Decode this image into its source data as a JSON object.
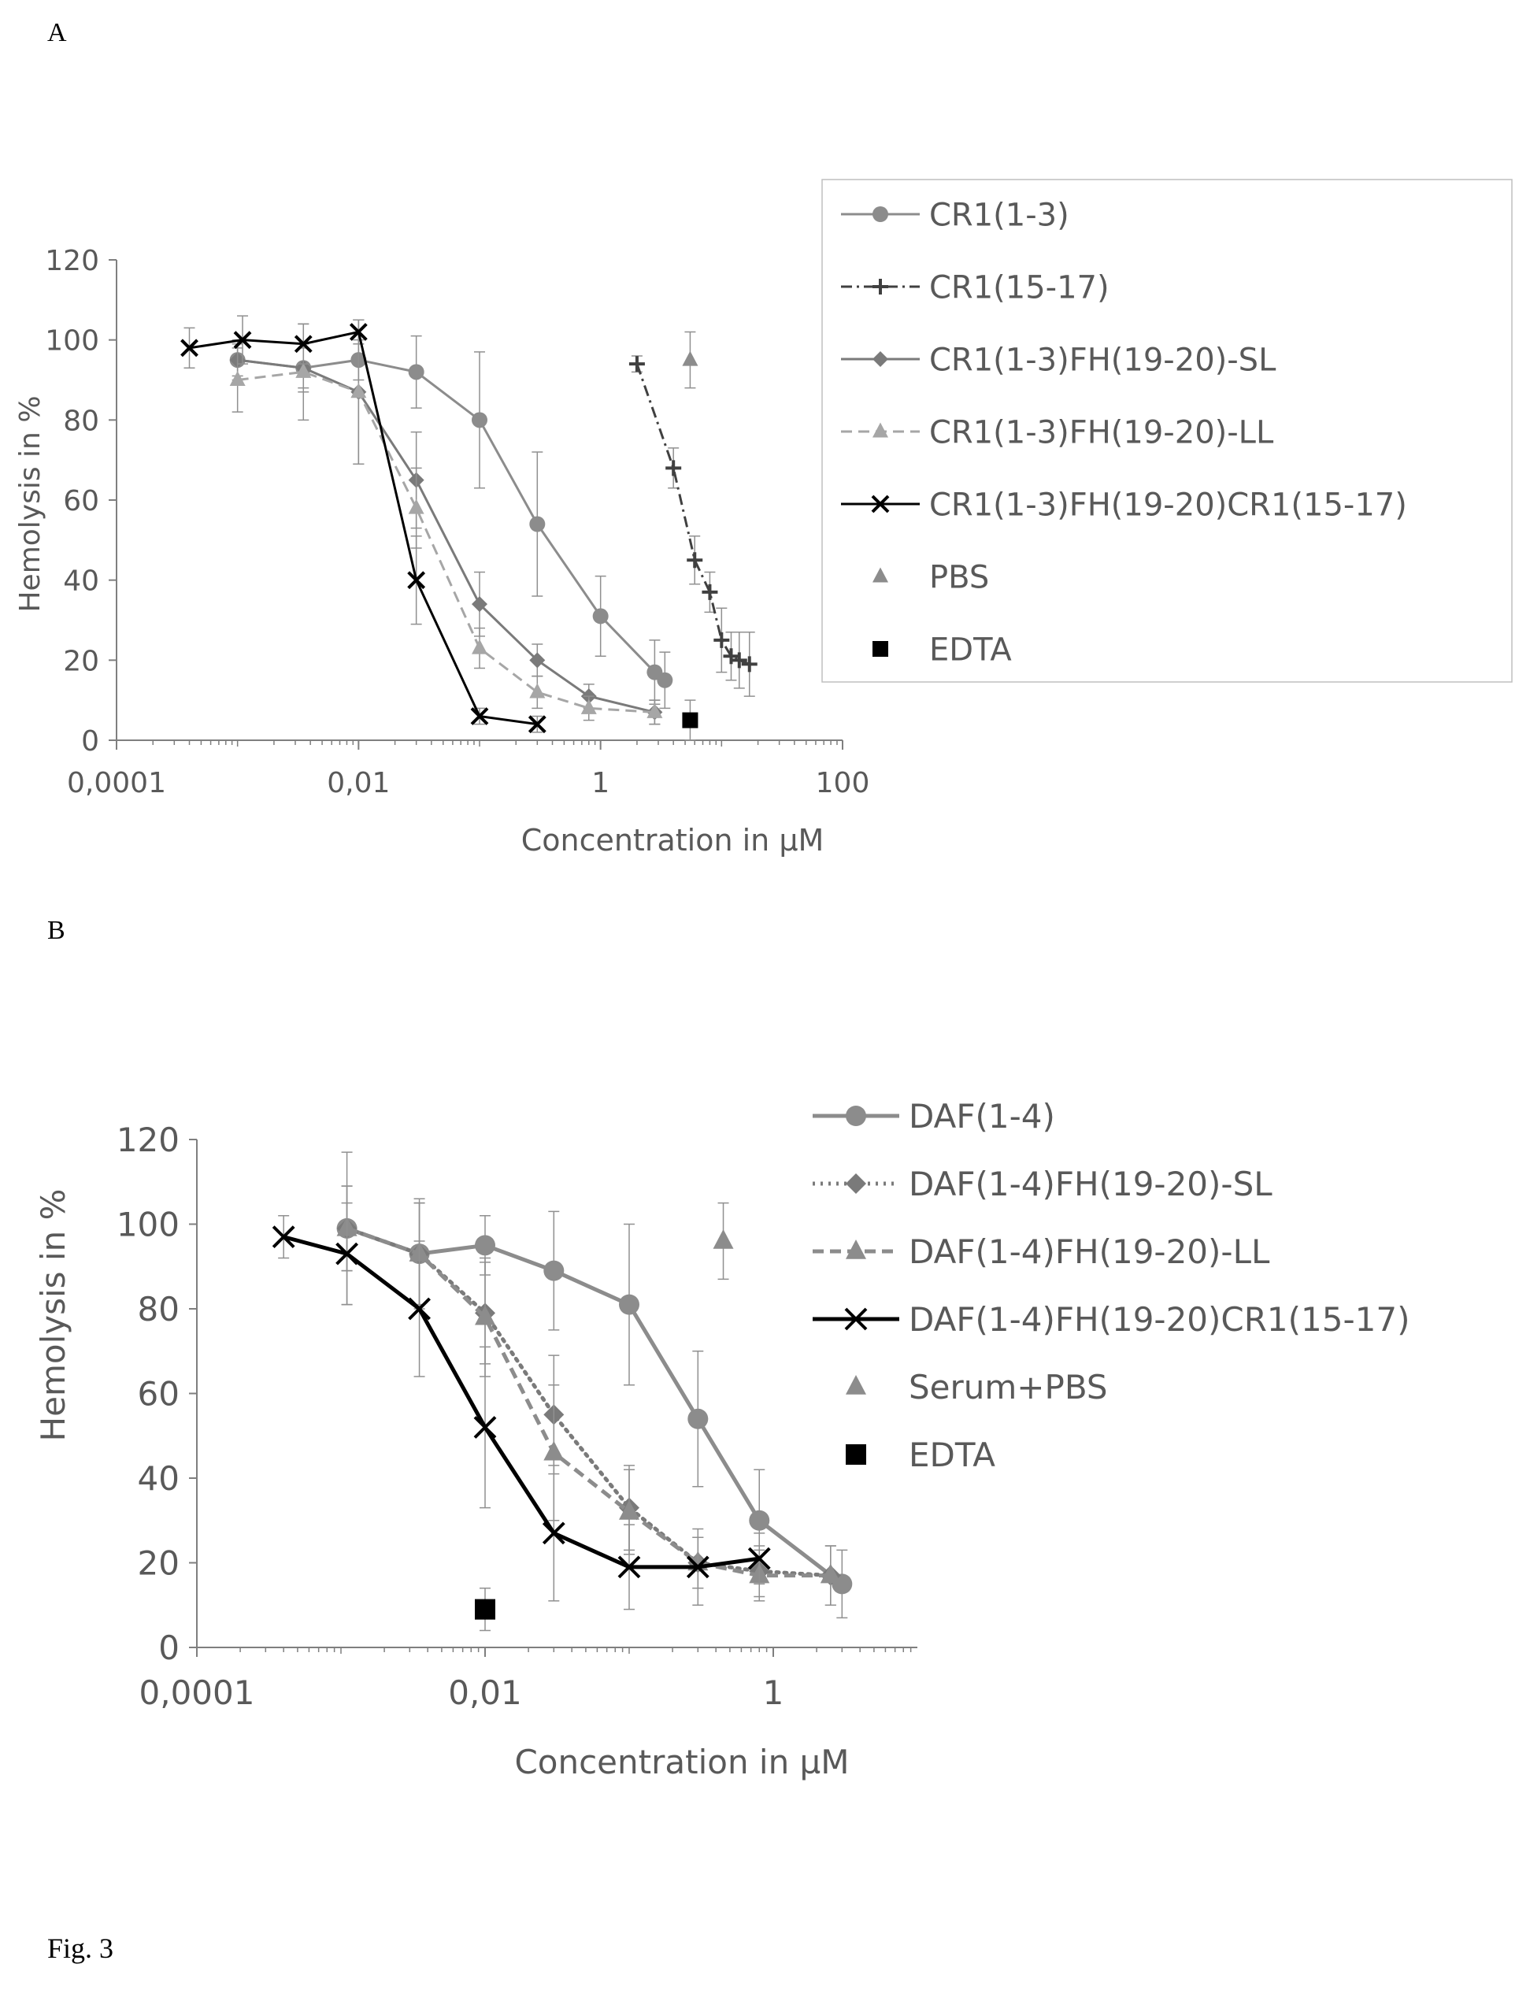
{
  "figure": {
    "panel_a_label": "A",
    "panel_b_label": "B",
    "caption": "Fig. 3"
  },
  "chart_data": [
    {
      "type": "scatter",
      "panel": "A",
      "xlabel": "Concentration in µM",
      "ylabel": "Hemolysis in %",
      "x_scale": "log",
      "xlim": [
        0.0001,
        100
      ],
      "ylim": [
        0,
        120
      ],
      "xticks": [
        "0,0001",
        "0,01",
        "1",
        "100"
      ],
      "yticks": [
        "0",
        "20",
        "40",
        "60",
        "80",
        "100",
        "120"
      ],
      "legend_position": "right",
      "grid": false,
      "series": [
        {
          "name": "CR1(1-3)",
          "marker": "circle",
          "line": "solid",
          "color": "#8c8c8c",
          "x": [
            0.001,
            0.0035,
            0.01,
            0.03,
            0.1,
            0.3,
            1,
            2.8,
            3.4
          ],
          "y": [
            95,
            93,
            95,
            92,
            80,
            54,
            31,
            17,
            15
          ],
          "err": [
            4,
            5,
            5,
            9,
            17,
            18,
            10,
            8,
            7
          ]
        },
        {
          "name": "CR1(15-17)",
          "marker": "plus",
          "line": "dash-dot",
          "color": "#404040",
          "x": [
            2,
            4,
            6,
            8,
            10,
            12,
            14,
            17
          ],
          "y": [
            94,
            68,
            45,
            37,
            25,
            21,
            20,
            19
          ],
          "err": [
            2,
            5,
            6,
            5,
            8,
            6,
            7,
            8
          ]
        },
        {
          "name": "CR1(1-3)FH(19-20)-SL",
          "marker": "diamond",
          "line": "solid",
          "color": "#7a7a7a",
          "x": [
            0.001,
            0.0035,
            0.01,
            0.03,
            0.1,
            0.3,
            0.8,
            2.8
          ],
          "y": [
            95,
            93,
            87,
            65,
            34,
            20,
            11,
            7
          ],
          "err": [
            5,
            6,
            18,
            12,
            8,
            4,
            3,
            3
          ]
        },
        {
          "name": "CR1(1-3)FH(19-20)-LL",
          "marker": "triangle",
          "line": "dashed",
          "color": "#a6a6a6",
          "x": [
            0.001,
            0.0035,
            0.01,
            0.03,
            0.1,
            0.3,
            0.8,
            2.8
          ],
          "y": [
            90,
            92,
            87,
            58,
            23,
            12,
            8,
            7
          ],
          "err": [
            8,
            12,
            18,
            10,
            5,
            4,
            3,
            3
          ]
        },
        {
          "name": "CR1(1-3)FH(19-20)CR1(15-17)",
          "marker": "x",
          "line": "solid",
          "color": "#000000",
          "x": [
            0.0004,
            0.0011,
            0.0035,
            0.01,
            0.03,
            0.1,
            0.3
          ],
          "y": [
            98,
            100,
            99,
            102,
            40,
            6,
            4
          ],
          "err": [
            5,
            6,
            5,
            3,
            11,
            2,
            2
          ]
        },
        {
          "name": "PBS",
          "marker": "triangle",
          "line": "none",
          "color": "#8c8c8c",
          "x": [
            5.5
          ],
          "y": [
            95
          ],
          "err": [
            7
          ]
        },
        {
          "name": "EDTA",
          "marker": "square",
          "line": "none",
          "color": "#000000",
          "x": [
            5.5
          ],
          "y": [
            5
          ],
          "err": [
            5
          ]
        }
      ]
    },
    {
      "type": "scatter",
      "panel": "B",
      "xlabel": "Concentration in µM",
      "ylabel": "Hemolysis in %",
      "x_scale": "log",
      "xlim": [
        0.0001,
        10
      ],
      "ylim": [
        0,
        120
      ],
      "xticks": [
        "0,0001",
        "0,01",
        "1"
      ],
      "yticks": [
        "0",
        "20",
        "40",
        "60",
        "80",
        "100",
        "120"
      ],
      "legend_position": "right",
      "grid": false,
      "series": [
        {
          "name": "DAF(1-4)",
          "marker": "circle",
          "line": "solid",
          "color": "#8c8c8c",
          "x": [
            0.0011,
            0.0035,
            0.01,
            0.03,
            0.1,
            0.3,
            0.8,
            3.0
          ],
          "y": [
            99,
            93,
            95,
            89,
            81,
            54,
            30,
            15
          ],
          "err": [
            18,
            13,
            7,
            14,
            19,
            16,
            12,
            8
          ]
        },
        {
          "name": "DAF(1-4)FH(19-20)-SL",
          "marker": "diamond",
          "line": "dotted",
          "color": "#7a7a7a",
          "x": [
            0.0011,
            0.0035,
            0.01,
            0.03,
            0.1,
            0.3,
            0.8,
            2.5
          ],
          "y": [
            99,
            93,
            79,
            55,
            33,
            20,
            18,
            17
          ],
          "err": [
            10,
            12,
            12,
            14,
            10,
            6,
            6,
            7
          ]
        },
        {
          "name": "DAF(1-4)FH(19-20)-LL",
          "marker": "triangle",
          "line": "dashed",
          "color": "#8c8c8c",
          "x": [
            0.0011,
            0.0035,
            0.01,
            0.03,
            0.1,
            0.3,
            0.8,
            2.5
          ],
          "y": [
            99,
            93,
            78,
            46,
            32,
            20,
            17,
            17
          ],
          "err": [
            10,
            12,
            14,
            16,
            10,
            6,
            6,
            7
          ]
        },
        {
          "name": "DAF(1-4)FH(19-20)CR1(15-17)",
          "marker": "x",
          "line": "solid",
          "color": "#000000",
          "x": [
            0.0004,
            0.0011,
            0.0035,
            0.01,
            0.03,
            0.1,
            0.3,
            0.8
          ],
          "y": [
            97,
            93,
            80,
            52,
            27,
            19,
            19,
            21
          ],
          "err": [
            5,
            12,
            16,
            19,
            16,
            10,
            9,
            6
          ]
        },
        {
          "name": "Serum+PBS",
          "marker": "triangle",
          "line": "none",
          "color": "#8c8c8c",
          "x": [
            0.45
          ],
          "y": [
            96
          ],
          "err": [
            9
          ]
        },
        {
          "name": "EDTA",
          "marker": "square",
          "line": "none",
          "color": "#000000",
          "x": [
            0.01
          ],
          "y": [
            9
          ],
          "err": [
            5
          ]
        }
      ]
    }
  ]
}
